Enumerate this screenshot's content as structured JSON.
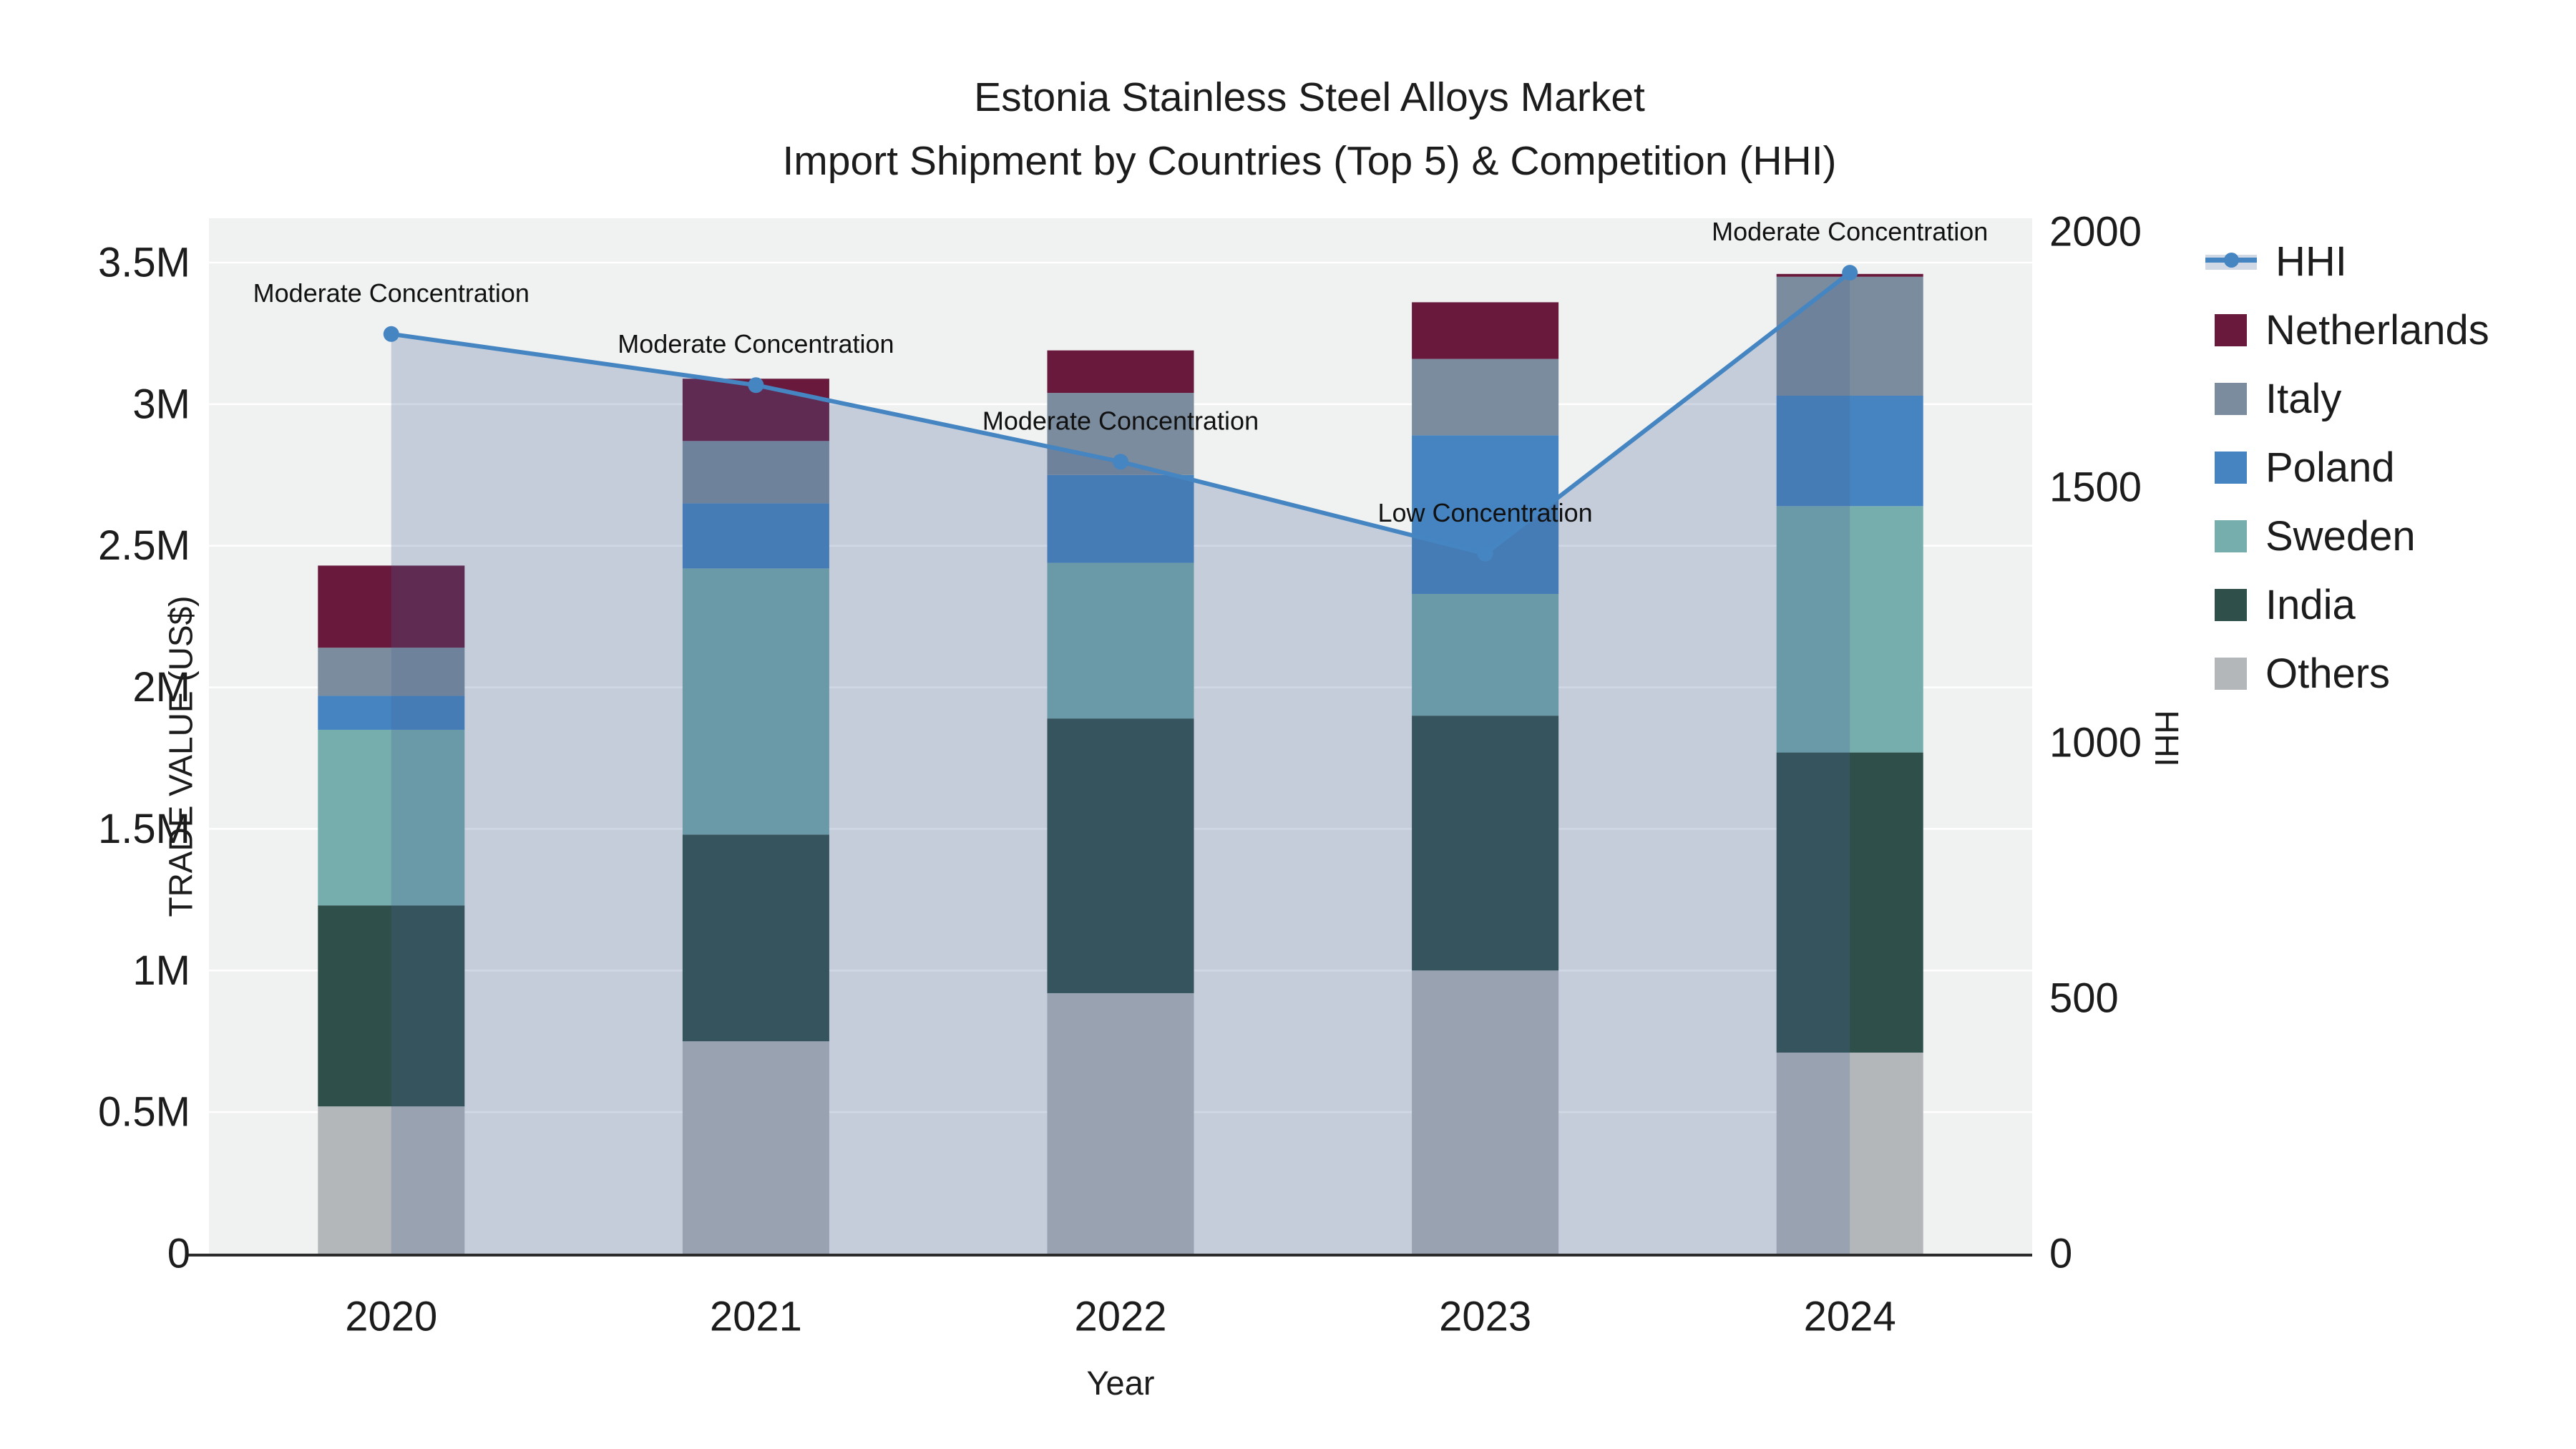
{
  "title": {
    "line1": "Estonia Stainless Steel Alloys Market",
    "line2": "Import Shipment by Countries (Top 5) & Competition (HHI)"
  },
  "axes": {
    "left": {
      "title": "TRADE VALUE (US$)",
      "tick_labels": [
        "0",
        "0.5M",
        "1M",
        "1.5M",
        "2M",
        "2.5M",
        "3M",
        "3.5M"
      ],
      "tick_values": [
        0,
        0.5,
        1,
        1.5,
        2,
        2.5,
        3,
        3.5
      ]
    },
    "right": {
      "title": "HHI",
      "tick_labels": [
        "0",
        "500",
        "1000",
        "1500",
        "2000"
      ],
      "tick_values": [
        0,
        500,
        1000,
        1500,
        2000
      ]
    },
    "x": {
      "title": "Year"
    }
  },
  "chart_data": {
    "type": "bar+line",
    "categories": [
      "2020",
      "2021",
      "2022",
      "2023",
      "2024"
    ],
    "bar_unit": "M US$ (millions of US dollars, left axis)",
    "stacked_bar_series": [
      {
        "name": "Others",
        "color": "#b4b7b9",
        "values": [
          0.52,
          0.75,
          0.92,
          1.0,
          0.71
        ]
      },
      {
        "name": "India",
        "color": "#2f4f4b",
        "values": [
          0.71,
          0.73,
          0.97,
          0.9,
          1.06
        ]
      },
      {
        "name": "Sweden",
        "color": "#76adad",
        "values": [
          0.62,
          0.94,
          0.55,
          0.43,
          0.87
        ]
      },
      {
        "name": "Poland",
        "color": "#4584c1",
        "values": [
          0.12,
          0.23,
          0.31,
          0.56,
          0.39
        ]
      },
      {
        "name": "Italy",
        "color": "#7b8c9e",
        "values": [
          0.17,
          0.22,
          0.29,
          0.27,
          0.42
        ]
      },
      {
        "name": "Netherlands",
        "color": "#68193c",
        "values": [
          0.29,
          0.22,
          0.15,
          0.2,
          0.01
        ]
      }
    ],
    "bar_totals": [
      2.43,
      3.09,
      3.19,
      3.36,
      3.46
    ],
    "line_series": {
      "name": "HHI",
      "axis": "right",
      "color": "#4585c1",
      "fill": "rgba(70,100,150,0.25)",
      "values": [
        1800,
        1700,
        1550,
        1370,
        1920
      ]
    },
    "annotations": [
      {
        "category": "2020",
        "text": "Moderate Concentration"
      },
      {
        "category": "2021",
        "text": "Moderate Concentration"
      },
      {
        "category": "2022",
        "text": "Moderate Concentration"
      },
      {
        "category": "2023",
        "text": "Low Concentration"
      },
      {
        "category": "2024",
        "text": "Moderate Concentration"
      }
    ],
    "ylabel_left": "TRADE VALUE (US$)",
    "ylabel_right": "HHI",
    "xlabel": "Year",
    "ylim_left": [
      0,
      3.66
    ],
    "ylim_right": [
      0,
      2000
    ],
    "grid": "horizontal white gridlines every 0.5M on light gray plot background",
    "legend_position": "right",
    "legend_order": [
      "HHI",
      "Netherlands",
      "Italy",
      "Poland",
      "Sweden",
      "India",
      "Others"
    ]
  },
  "colors": {
    "plot_background": "#f0f1f1",
    "gridline": "#ffffff",
    "axis_line": "#2b2b2b",
    "text": "#1c1c1c",
    "hhi_line": "#4585c1",
    "hhi_area_fill": "rgba(70,100,150,0.25)"
  }
}
